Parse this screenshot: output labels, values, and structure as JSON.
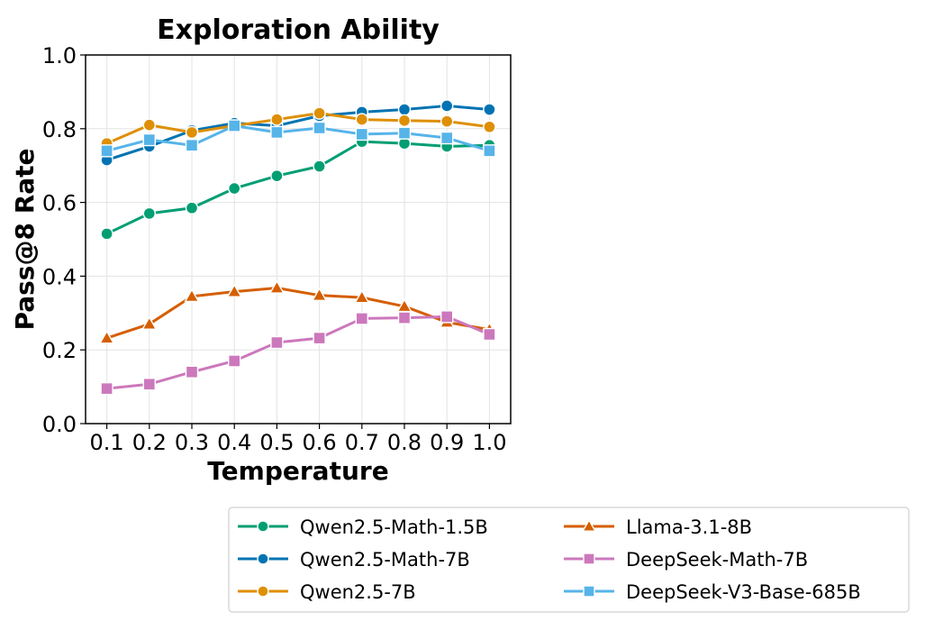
{
  "chart_data": {
    "type": "line",
    "title": "Exploration Ability",
    "xlabel": "Temperature",
    "ylabel": "Pass@8 Rate",
    "x": [
      0.1,
      0.2,
      0.3,
      0.4,
      0.5,
      0.6,
      0.7,
      0.8,
      0.9,
      1.0
    ],
    "x_tick_labels": [
      "0.1",
      "0.2",
      "0.3",
      "0.4",
      "0.5",
      "0.6",
      "0.7",
      "0.8",
      "0.9",
      "1.0"
    ],
    "y_tick_labels": [
      "0.0",
      "0.2",
      "0.4",
      "0.6",
      "0.8",
      "1.0"
    ],
    "ylim": [
      0,
      1
    ],
    "grid": true,
    "legend_position": "below-right",
    "series": [
      {
        "name": "Qwen2.5-Math-1.5B",
        "color": "#029e73",
        "marker": "circle",
        "values": [
          0.515,
          0.57,
          0.585,
          0.638,
          0.672,
          0.698,
          0.765,
          0.76,
          0.752,
          0.755
        ]
      },
      {
        "name": "Qwen2.5-Math-7B",
        "color": "#0173b2",
        "marker": "circle",
        "values": [
          0.715,
          0.752,
          0.795,
          0.815,
          0.808,
          0.835,
          0.845,
          0.852,
          0.862,
          0.852
        ]
      },
      {
        "name": "Qwen2.5-7B",
        "color": "#de8f05",
        "marker": "circle",
        "values": [
          0.76,
          0.81,
          0.79,
          0.808,
          0.825,
          0.842,
          0.825,
          0.822,
          0.82,
          0.805
        ]
      },
      {
        "name": "Llama-3.1-8B",
        "color": "#d55e00",
        "marker": "triangle",
        "values": [
          0.232,
          0.27,
          0.345,
          0.358,
          0.368,
          0.348,
          0.342,
          0.318,
          0.275,
          0.255
        ]
      },
      {
        "name": "DeepSeek-Math-7B",
        "color": "#cc78bc",
        "marker": "square",
        "values": [
          0.095,
          0.107,
          0.14,
          0.17,
          0.22,
          0.232,
          0.285,
          0.287,
          0.29,
          0.242
        ]
      },
      {
        "name": "DeepSeek-V3-Base-685B",
        "color": "#56b4e9",
        "marker": "square",
        "values": [
          0.74,
          0.77,
          0.755,
          0.808,
          0.79,
          0.802,
          0.785,
          0.788,
          0.775,
          0.74
        ]
      }
    ]
  }
}
